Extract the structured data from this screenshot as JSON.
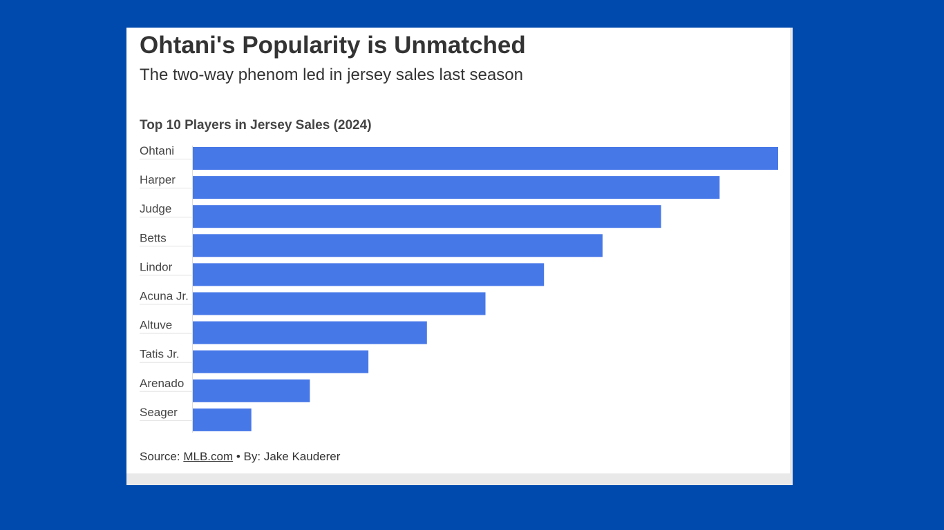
{
  "title": "Ohtani's Popularity is Unmatched",
  "subtitle": "The two-way phenom led in jersey sales last season",
  "footer": {
    "source_label": "Source:",
    "source_link": "MLB.com",
    "separator": "•",
    "byline": "By: Jake Kauderer"
  },
  "colors": {
    "background": "#004aad",
    "bar": "#4778e8",
    "text": "#333333"
  },
  "chart_data": {
    "type": "bar",
    "orientation": "horizontal",
    "title": "Top 10 Players in Jersey Sales (2024)",
    "categories": [
      "Ohtani",
      "Harper",
      "Judge",
      "Betts",
      "Lindor",
      "Acuna Jr.",
      "Altuve",
      "Tatis Jr.",
      "Arenado",
      "Seager"
    ],
    "values": [
      10,
      9,
      8,
      7,
      6,
      5,
      4,
      3,
      2,
      1
    ],
    "xlim": [
      0,
      10
    ],
    "xlabel": "",
    "ylabel": "",
    "grid": false,
    "legend": "none"
  }
}
